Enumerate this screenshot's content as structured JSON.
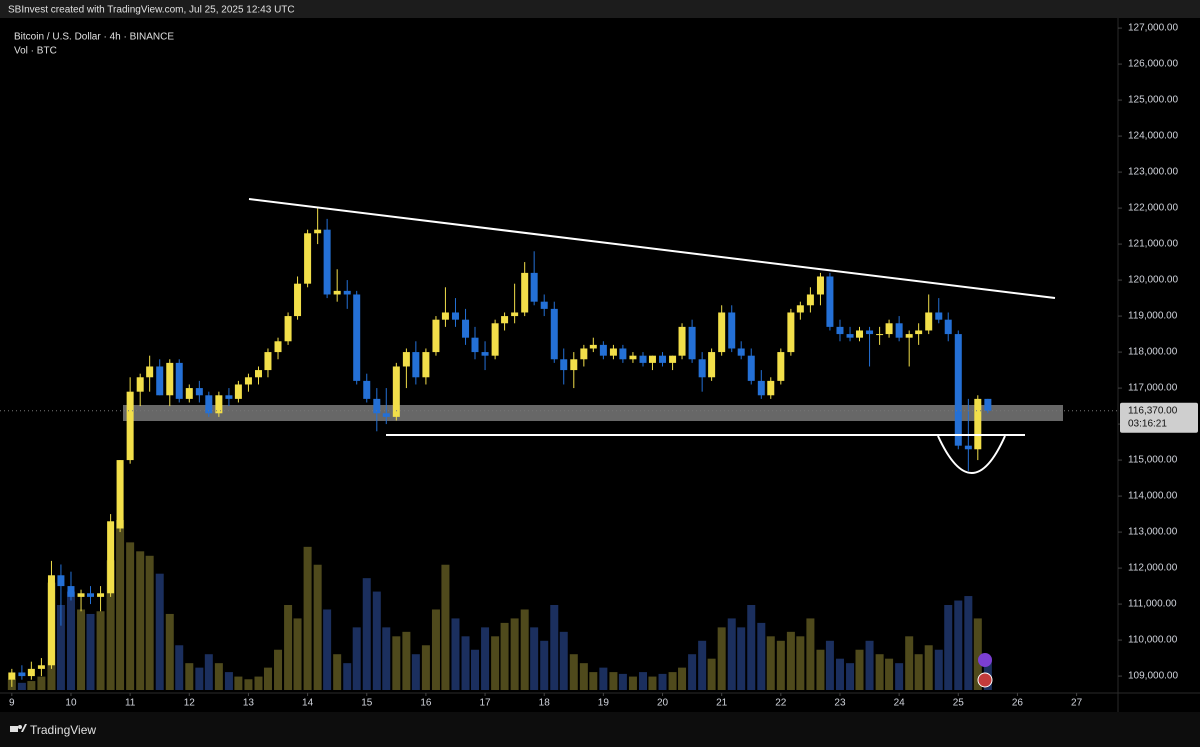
{
  "header": "SBInvest created with TradingView.com, Jul 25, 2025 12:43 UTC",
  "footer": "TradingView",
  "chart_data": {
    "type": "candlestick",
    "title": "Bitcoin / U.S. Dollar · 4h · BINANCE",
    "subtitle": "Vol · BTC",
    "up_color": "#f2df4a",
    "down_color": "#2470d6",
    "up_volume_color": "#4f4a1c",
    "down_volume_color": "#1b2f5e",
    "xlim": [
      8.8,
      27.7
    ],
    "xticks": [
      9,
      10,
      11,
      12,
      13,
      14,
      15,
      16,
      17,
      18,
      19,
      20,
      21,
      22,
      23,
      24,
      25,
      26,
      27
    ],
    "ylim": [
      108530,
      127280
    ],
    "yticks": [
      {
        "value": 127000,
        "label": "127,000.00"
      },
      {
        "value": 126000,
        "label": "126,000.00"
      },
      {
        "value": 125000,
        "label": "125,000.00"
      },
      {
        "value": 124000,
        "label": "124,000.00"
      },
      {
        "value": 123000,
        "label": "123,000.00"
      },
      {
        "value": 122000,
        "label": "122,000.00"
      },
      {
        "value": 121000,
        "label": "121,000.00"
      },
      {
        "value": 120000,
        "label": "120,000.00"
      },
      {
        "value": 119000,
        "label": "119,000.00"
      },
      {
        "value": 118000,
        "label": "118,000.00"
      },
      {
        "value": 117000,
        "label": "117,000.00"
      },
      {
        "value": 116000,
        "label": "116,000.00"
      },
      {
        "value": 115000,
        "label": "115,000.00"
      },
      {
        "value": 114000,
        "label": "114,000.00"
      },
      {
        "value": 113000,
        "label": "113,000.00"
      },
      {
        "value": 112000,
        "label": "112,000.00"
      },
      {
        "value": 111000,
        "label": "111,000.00"
      },
      {
        "value": 110000,
        "label": "110,000.00"
      },
      {
        "value": 109000,
        "label": "109,000.00"
      }
    ],
    "price_label": {
      "value": 116370,
      "label": "116,370.00"
    },
    "countdown": "03:16:21",
    "x": [
      9,
      9.17,
      9.33,
      9.5,
      9.67,
      9.83,
      10,
      10.17,
      10.33,
      10.5,
      10.67,
      10.83,
      11,
      11.17,
      11.33,
      11.5,
      11.67,
      11.83,
      12,
      12.17,
      12.33,
      12.5,
      12.67,
      12.83,
      13,
      13.17,
      13.33,
      13.5,
      13.67,
      13.83,
      14,
      14.17,
      14.33,
      14.5,
      14.67,
      14.83,
      15,
      15.17,
      15.33,
      15.5,
      15.67,
      15.83,
      16,
      16.17,
      16.33,
      16.5,
      16.67,
      16.83,
      17,
      17.17,
      17.33,
      17.5,
      17.67,
      17.83,
      18,
      18.17,
      18.33,
      18.5,
      18.67,
      18.83,
      19,
      19.17,
      19.33,
      19.5,
      19.67,
      19.83,
      20,
      20.17,
      20.33,
      20.5,
      20.67,
      20.83,
      21,
      21.17,
      21.33,
      21.5,
      21.67,
      21.83,
      22,
      22.17,
      22.33,
      22.5,
      22.67,
      22.83,
      23,
      23.17,
      23.33,
      23.5,
      23.67,
      23.83,
      24,
      24.17,
      24.33,
      24.5,
      24.67,
      24.83,
      25,
      25.17,
      25.33,
      25.5
    ],
    "ohlc": [
      [
        108900,
        109200,
        108700,
        109100
      ],
      [
        109100,
        109300,
        108900,
        109000
      ],
      [
        109000,
        109400,
        108900,
        109200
      ],
      [
        109200,
        109500,
        109000,
        109300
      ],
      [
        109300,
        112200,
        109200,
        111800
      ],
      [
        111800,
        112100,
        110400,
        111500
      ],
      [
        111500,
        111900,
        111100,
        111200
      ],
      [
        111200,
        111400,
        110800,
        111300
      ],
      [
        111300,
        111500,
        111000,
        111200
      ],
      [
        111200,
        111500,
        110800,
        111300
      ],
      [
        111300,
        113500,
        111200,
        113300
      ],
      [
        113100,
        115000,
        113000,
        115000
      ],
      [
        115000,
        117300,
        114900,
        116900
      ],
      [
        116900,
        117400,
        116500,
        117300
      ],
      [
        117300,
        117900,
        116900,
        117600
      ],
      [
        117600,
        117800,
        116800,
        116800
      ],
      [
        116800,
        117800,
        116500,
        117700
      ],
      [
        117700,
        117800,
        116600,
        116700
      ],
      [
        116700,
        117100,
        116600,
        117000
      ],
      [
        117000,
        117200,
        116600,
        116800
      ],
      [
        116800,
        116900,
        116200,
        116300
      ],
      [
        116300,
        116900,
        116200,
        116800
      ],
      [
        116800,
        117000,
        116500,
        116700
      ],
      [
        116700,
        117200,
        116600,
        117100
      ],
      [
        117100,
        117400,
        116900,
        117300
      ],
      [
        117300,
        117600,
        117100,
        117500
      ],
      [
        117500,
        118100,
        117300,
        118000
      ],
      [
        118000,
        118400,
        117800,
        118300
      ],
      [
        118300,
        119100,
        118200,
        119000
      ],
      [
        119000,
        120100,
        118900,
        119900
      ],
      [
        119900,
        121400,
        119800,
        121300
      ],
      [
        121300,
        122000,
        121000,
        121400
      ],
      [
        121400,
        121700,
        119500,
        119600
      ],
      [
        119600,
        120300,
        119400,
        119700
      ],
      [
        119700,
        120000,
        119200,
        119600
      ],
      [
        119600,
        119700,
        117100,
        117200
      ],
      [
        117200,
        117400,
        116600,
        116700
      ],
      [
        116700,
        117000,
        115800,
        116300
      ],
      [
        116300,
        117000,
        116000,
        116200
      ],
      [
        116200,
        117700,
        116100,
        117600
      ],
      [
        117600,
        118100,
        117000,
        118000
      ],
      [
        118000,
        118300,
        117100,
        117300
      ],
      [
        117300,
        118100,
        117100,
        118000
      ],
      [
        118000,
        119000,
        117900,
        118900
      ],
      [
        118900,
        119800,
        118700,
        119100
      ],
      [
        119100,
        119500,
        118700,
        118900
      ],
      [
        118900,
        119200,
        118200,
        118400
      ],
      [
        118400,
        118700,
        117800,
        118000
      ],
      [
        118000,
        118300,
        117500,
        117900
      ],
      [
        117900,
        118900,
        117800,
        118800
      ],
      [
        118800,
        119100,
        118600,
        119000
      ],
      [
        119000,
        119900,
        118800,
        119100
      ],
      [
        119100,
        120500,
        119000,
        120200
      ],
      [
        120200,
        120800,
        119300,
        119400
      ],
      [
        119400,
        119600,
        119000,
        119200
      ],
      [
        119200,
        119400,
        117700,
        117800
      ],
      [
        117800,
        118100,
        117100,
        117500
      ],
      [
        117500,
        118000,
        117000,
        117800
      ],
      [
        117800,
        118200,
        117600,
        118100
      ],
      [
        118100,
        118400,
        118000,
        118200
      ],
      [
        118200,
        118300,
        117800,
        117900
      ],
      [
        117900,
        118200,
        117800,
        118100
      ],
      [
        118100,
        118200,
        117700,
        117800
      ],
      [
        117800,
        118000,
        117700,
        117900
      ],
      [
        117900,
        118000,
        117600,
        117700
      ],
      [
        117700,
        117900,
        117500,
        117900
      ],
      [
        117900,
        118000,
        117600,
        117700
      ],
      [
        117700,
        117900,
        117500,
        117900
      ],
      [
        117900,
        118800,
        117800,
        118700
      ],
      [
        118700,
        118900,
        117700,
        117800
      ],
      [
        117800,
        118000,
        116900,
        117300
      ],
      [
        117300,
        118100,
        117200,
        118000
      ],
      [
        118000,
        119300,
        117900,
        119100
      ],
      [
        119100,
        119300,
        118000,
        118100
      ],
      [
        118100,
        118300,
        117800,
        117900
      ],
      [
        117900,
        118100,
        117100,
        117200
      ],
      [
        117200,
        117500,
        116700,
        116800
      ],
      [
        116800,
        117300,
        116700,
        117200
      ],
      [
        117200,
        118100,
        117100,
        118000
      ],
      [
        118000,
        119200,
        117900,
        119100
      ],
      [
        119100,
        119400,
        118900,
        119300
      ],
      [
        119300,
        119800,
        119100,
        119600
      ],
      [
        119600,
        120200,
        119300,
        120100
      ],
      [
        120100,
        120200,
        118600,
        118700
      ],
      [
        118700,
        118900,
        118300,
        118500
      ],
      [
        118500,
        118700,
        118300,
        118400
      ],
      [
        118400,
        118700,
        118300,
        118600
      ],
      [
        118600,
        118700,
        117600,
        118500
      ],
      [
        118500,
        118700,
        118200,
        118500
      ],
      [
        118500,
        118900,
        118400,
        118800
      ],
      [
        118800,
        119000,
        118300,
        118400
      ],
      [
        118400,
        118600,
        117600,
        118500
      ],
      [
        118500,
        118800,
        118200,
        118600
      ],
      [
        118600,
        119600,
        118500,
        119100
      ],
      [
        119100,
        119500,
        118800,
        118900
      ],
      [
        118900,
        119100,
        118300,
        118500
      ],
      [
        118500,
        118600,
        115300,
        115400
      ],
      [
        115400,
        116700,
        114700,
        115300
      ],
      [
        115300,
        116800,
        115000,
        116700
      ],
      [
        116700,
        116700,
        116300,
        116370
      ]
    ],
    "volume": [
      12,
      8,
      10,
      15,
      120,
      95,
      110,
      90,
      85,
      88,
      145,
      190,
      165,
      155,
      150,
      130,
      85,
      50,
      30,
      25,
      40,
      30,
      20,
      15,
      12,
      15,
      25,
      45,
      95,
      80,
      160,
      140,
      90,
      40,
      30,
      70,
      125,
      110,
      70,
      60,
      65,
      40,
      50,
      90,
      140,
      80,
      60,
      45,
      70,
      60,
      75,
      80,
      90,
      70,
      55,
      95,
      65,
      40,
      30,
      20,
      25,
      20,
      18,
      15,
      20,
      15,
      18,
      20,
      25,
      40,
      55,
      35,
      70,
      80,
      70,
      95,
      75,
      60,
      55,
      65,
      60,
      80,
      45,
      55,
      35,
      30,
      45,
      55,
      40,
      35,
      30,
      60,
      40,
      50,
      45,
      95,
      100,
      105,
      80,
      35
    ]
  }
}
